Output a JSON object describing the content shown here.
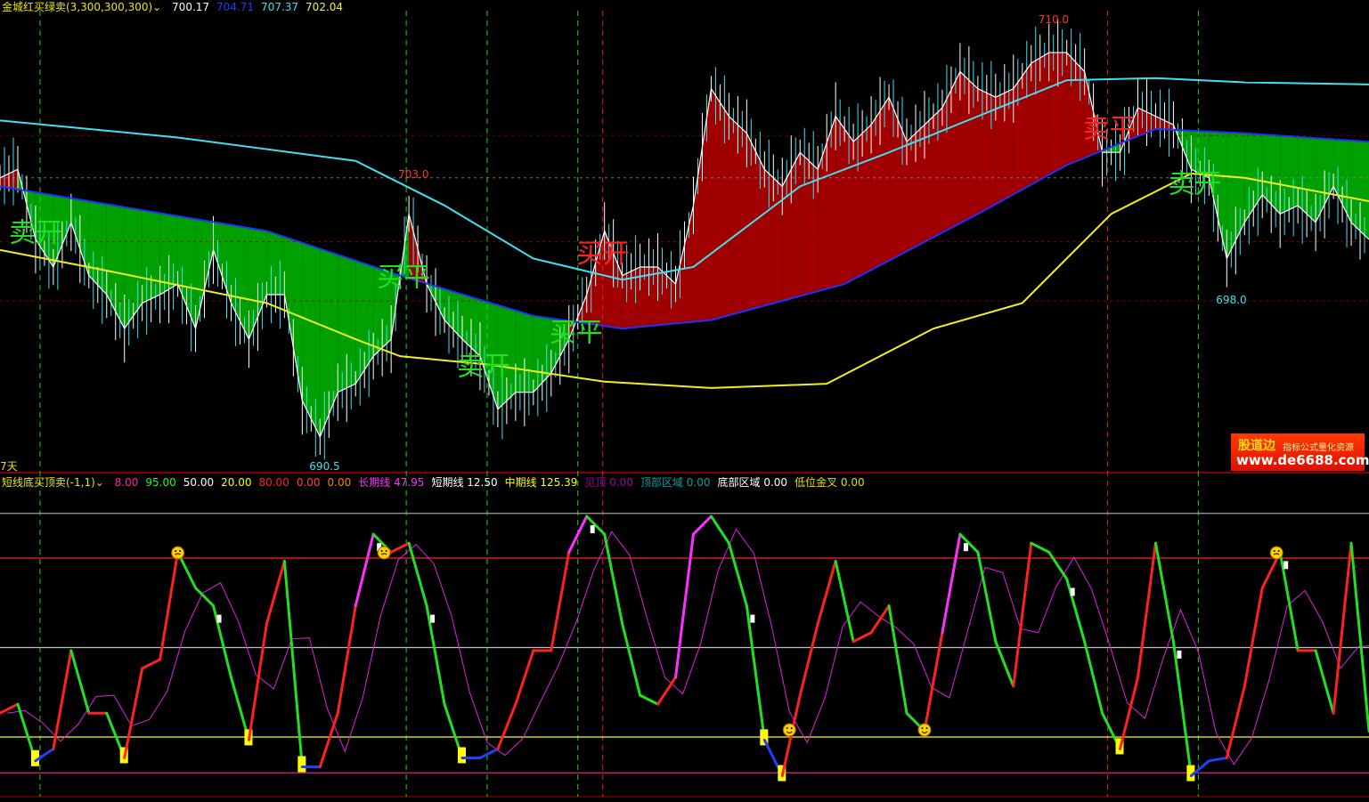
{
  "top_panel": {
    "indicator_name": "金城红买绿卖(3,300,300,300)",
    "values": [
      {
        "v": "700.17",
        "color": "#ffffff"
      },
      {
        "v": "704.71",
        "color": "#1e3cff"
      },
      {
        "v": "707.37",
        "color": "#40e0f0"
      },
      {
        "v": "702.04",
        "color": "#f0f040"
      }
    ],
    "days_label": "7天"
  },
  "bottom_panel": {
    "indicator_name": "短线底买顶卖(-1,1)",
    "values": [
      {
        "v": "8.00",
        "color": "#ff20a0"
      },
      {
        "v": "95.00",
        "color": "#20ff20"
      },
      {
        "v": "50.00",
        "color": "#ffffff"
      },
      {
        "v": "20.00",
        "color": "#ffff00"
      },
      {
        "v": "80.00",
        "color": "#ff2020"
      },
      {
        "v": "0.00",
        "color": "#ff4040"
      },
      {
        "v": "0.00",
        "color": "#ff8000"
      },
      {
        "v": "长期线 47.95",
        "color": "#ff30ff"
      },
      {
        "v": "短期线 12.50",
        "color": "#ffffff"
      },
      {
        "v": "中期线 125.39",
        "color": "#ffff00"
      },
      {
        "v": "见顶 0.00",
        "color": "#a000a0"
      },
      {
        "v": "顶部区域 0.00",
        "color": "#00a0a0"
      },
      {
        "v": "底部区域 0.00",
        "color": "#ffffff"
      },
      {
        "v": "低位金叉 0.00",
        "color": "#e0e000"
      }
    ]
  },
  "watermark": {
    "brand": "股道边",
    "slogan": "指标公式量化资源",
    "url": "www.de6688.com"
  },
  "chart_data": [
    {
      "type": "line",
      "ylim": [
        690,
        711
      ],
      "price_labels": [
        {
          "text": "710.0",
          "i": 59
        },
        {
          "text": "703.0",
          "i": 23
        },
        {
          "text": "690.5",
          "i": 18
        },
        {
          "text": "698.0",
          "i": 69
        }
      ],
      "close": [
        703.3,
        703.7,
        700.4,
        699.1,
        701.2,
        698.7,
        697.8,
        696.2,
        697.4,
        697.8,
        698.3,
        696.2,
        699.9,
        697.4,
        695.7,
        697.8,
        697.8,
        692.8,
        691.1,
        693.2,
        693.6,
        694.9,
        695.7,
        701.6,
        698.3,
        696.6,
        695.7,
        694.9,
        692.4,
        693.2,
        693.2,
        694.1,
        695.7,
        697.8,
        700.8,
        698.7,
        699.1,
        699.1,
        698.3,
        702.0,
        707.5,
        706.2,
        705.4,
        703.7,
        702.9,
        704.5,
        703.7,
        706.2,
        705.0,
        705.8,
        707.1,
        705.0,
        705.8,
        706.6,
        708.3,
        707.5,
        707.1,
        707.5,
        708.7,
        709.2,
        709.2,
        708.3,
        704.5,
        704.5,
        706.6,
        706.2,
        705.8,
        703.7,
        703.3,
        699.5,
        701.2,
        702.5,
        701.6,
        702.0,
        701.2,
        702.9,
        701.2,
        700.4
      ],
      "series": [
        {
          "color": "#40e0f0",
          "points": [
            [
              0,
              706.0
            ],
            [
              10,
              705.2
            ],
            [
              20,
              704.1
            ],
            [
              25,
              702.0
            ],
            [
              30,
              699.5
            ],
            [
              35,
              698.5
            ],
            [
              39,
              699.1
            ],
            [
              45,
              702.9
            ],
            [
              50,
              704.5
            ],
            [
              55,
              706.2
            ],
            [
              60,
              707.9
            ],
            [
              65,
              708.0
            ],
            [
              70,
              707.8
            ],
            [
              77,
              707.7
            ]
          ]
        },
        {
          "color": "#1e32ff",
          "points": [
            [
              0,
              702.9
            ],
            [
              5,
              702.2
            ],
            [
              15,
              700.8
            ],
            [
              22.5,
              698.7
            ],
            [
              30,
              696.8
            ],
            [
              35,
              696.2
            ],
            [
              40,
              696.6
            ],
            [
              47.5,
              698.3
            ],
            [
              55,
              701.6
            ],
            [
              60,
              703.9
            ],
            [
              65,
              705.6
            ],
            [
              70,
              705.4
            ],
            [
              77,
              705.0
            ]
          ]
        },
        {
          "color": "#f0f020",
          "points": [
            [
              0,
              699.9
            ],
            [
              5,
              699.1
            ],
            [
              15,
              697.4
            ],
            [
              20,
              695.7
            ],
            [
              22.5,
              694.9
            ],
            [
              27.5,
              694.5
            ],
            [
              34,
              693.7
            ],
            [
              40,
              693.4
            ],
            [
              46.5,
              693.6
            ],
            [
              52.5,
              696.2
            ],
            [
              57.5,
              697.4
            ],
            [
              62.5,
              701.6
            ],
            [
              67,
              703.5
            ],
            [
              70,
              703.3
            ],
            [
              77,
              702.2
            ]
          ]
        }
      ],
      "signals": [
        {
          "text": "卖开",
          "i": 0.5,
          "price": 700.3,
          "color": "#20e020",
          "line": "green",
          "line_i": 2.25
        },
        {
          "text": "买平",
          "i": 21.2,
          "price": 698.2,
          "color": "#20e020",
          "line": "green",
          "line_i": 22.85
        },
        {
          "text": "卖开",
          "i": 25.7,
          "price": 694.0,
          "color": "#20e020",
          "line": "green",
          "line_i": 27.4
        },
        {
          "text": "买平",
          "i": 30.9,
          "price": 695.6,
          "color": "#20e020",
          "line": "green",
          "line_i": 32.5
        },
        {
          "text": "买开",
          "i": 32.4,
          "price": 699.3,
          "color": "#ff2020",
          "line": "red",
          "line_i": 33.9
        },
        {
          "text": "卖平",
          "i": 60.9,
          "price": 705.2,
          "color": "#ff2020",
          "line": "red",
          "line_i": 62.3
        },
        {
          "text": "卖开",
          "i": 65.7,
          "price": 702.6,
          "color": "#20e020",
          "line": "green",
          "line_i": 67.4
        }
      ]
    },
    {
      "type": "line",
      "ylim": [
        0,
        100
      ],
      "levels": [
        {
          "v": 95,
          "color": "#a0a0a0"
        },
        {
          "v": 80,
          "color": "#ff2020"
        },
        {
          "v": 50,
          "color": "#c0c0c0"
        },
        {
          "v": 20,
          "color": "#ffff00"
        },
        {
          "v": 8,
          "color": "#ff20a0"
        }
      ],
      "values": [
        28,
        31,
        12,
        16,
        49,
        28,
        28,
        13,
        43,
        46,
        82,
        70,
        64,
        40,
        19,
        58,
        79,
        10,
        10,
        28,
        64,
        88,
        82,
        85,
        64,
        31,
        13,
        13,
        16,
        31,
        49,
        49,
        82,
        94,
        88,
        58,
        34,
        31,
        40,
        88,
        94,
        85,
        64,
        19,
        7,
        34,
        58,
        79,
        52,
        55,
        64,
        28,
        22,
        55,
        88,
        82,
        52,
        37,
        85,
        82,
        73,
        52,
        28,
        16,
        40,
        85,
        52,
        7,
        12,
        13,
        37,
        70,
        82,
        49,
        49,
        28,
        85,
        22
      ],
      "smiley_markers": [
        10,
        21.6,
        44.4,
        52,
        71.8
      ]
    }
  ]
}
